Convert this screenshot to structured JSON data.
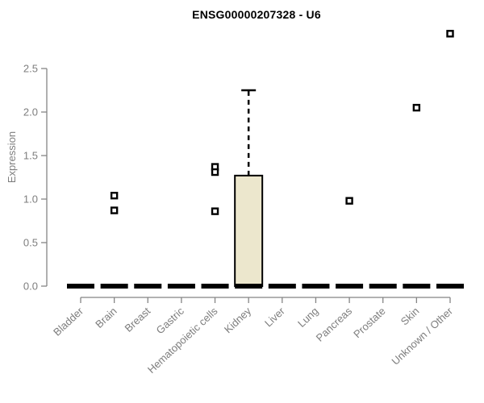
{
  "chart_data": {
    "type": "boxplot",
    "title": "ENSG00000207328 - U6",
    "xlabel": "",
    "ylabel": "Expression",
    "ylim": [
      0,
      2.5
    ],
    "grid": false,
    "legend": "none",
    "ytick_labels": [
      "0.0",
      "0.5",
      "1.0",
      "1.5",
      "2.0",
      "2.5"
    ],
    "ytick_values": [
      0,
      0.5,
      1,
      1.5,
      2,
      2.5
    ],
    "categories": [
      "Bladder",
      "Brain",
      "Breast",
      "Gastric",
      "Hematopoietic cells",
      "Kidney",
      "Liver",
      "Lung",
      "Pancreas",
      "Prostate",
      "Skin",
      "Unknown / Other"
    ],
    "boxes": [
      {
        "category": "Bladder",
        "q1": 0,
        "median": 0,
        "q3": 0,
        "whisker_low": 0,
        "whisker_high": 0,
        "outliers": []
      },
      {
        "category": "Brain",
        "q1": 0,
        "median": 0,
        "q3": 0,
        "whisker_low": 0,
        "whisker_high": 0,
        "outliers": [
          1.04,
          0.87
        ]
      },
      {
        "category": "Breast",
        "q1": 0,
        "median": 0,
        "q3": 0,
        "whisker_low": 0,
        "whisker_high": 0,
        "outliers": []
      },
      {
        "category": "Gastric",
        "q1": 0,
        "median": 0,
        "q3": 0,
        "whisker_low": 0,
        "whisker_high": 0,
        "outliers": []
      },
      {
        "category": "Hematopoietic cells",
        "q1": 0,
        "median": 0,
        "q3": 0,
        "whisker_low": 0,
        "whisker_high": 0,
        "outliers": [
          1.37,
          1.31,
          0.86
        ]
      },
      {
        "category": "Kidney",
        "q1": 0,
        "median": 0,
        "q3": 1.27,
        "whisker_low": 0,
        "whisker_high": 2.25,
        "outliers": []
      },
      {
        "category": "Liver",
        "q1": 0,
        "median": 0,
        "q3": 0,
        "whisker_low": 0,
        "whisker_high": 0,
        "outliers": []
      },
      {
        "category": "Lung",
        "q1": 0,
        "median": 0,
        "q3": 0,
        "whisker_low": 0,
        "whisker_high": 0,
        "outliers": []
      },
      {
        "category": "Pancreas",
        "q1": 0,
        "median": 0,
        "q3": 0,
        "whisker_low": 0,
        "whisker_high": 0,
        "outliers": [
          0.98
        ]
      },
      {
        "category": "Prostate",
        "q1": 0,
        "median": 0,
        "q3": 0,
        "whisker_low": 0,
        "whisker_high": 0,
        "outliers": []
      },
      {
        "category": "Skin",
        "q1": 0,
        "median": 0,
        "q3": 0,
        "whisker_low": 0,
        "whisker_high": 0,
        "outliers": [
          2.05
        ]
      },
      {
        "category": "Unknown / Other",
        "q1": 0,
        "median": 0,
        "q3": 0,
        "whisker_low": 0,
        "whisker_high": 0,
        "outliers": [
          2.9
        ]
      }
    ],
    "colors": {
      "box_fill": "#ece7cd",
      "box_stroke": "#000000",
      "median": "#000000",
      "whisker": "#000000",
      "outlier_fill": "#ffffff",
      "outlier_stroke": "#000000",
      "axis": "#858585",
      "tick_label": "#7e7e7e",
      "title": "#000000",
      "background": "#ffffff"
    }
  }
}
